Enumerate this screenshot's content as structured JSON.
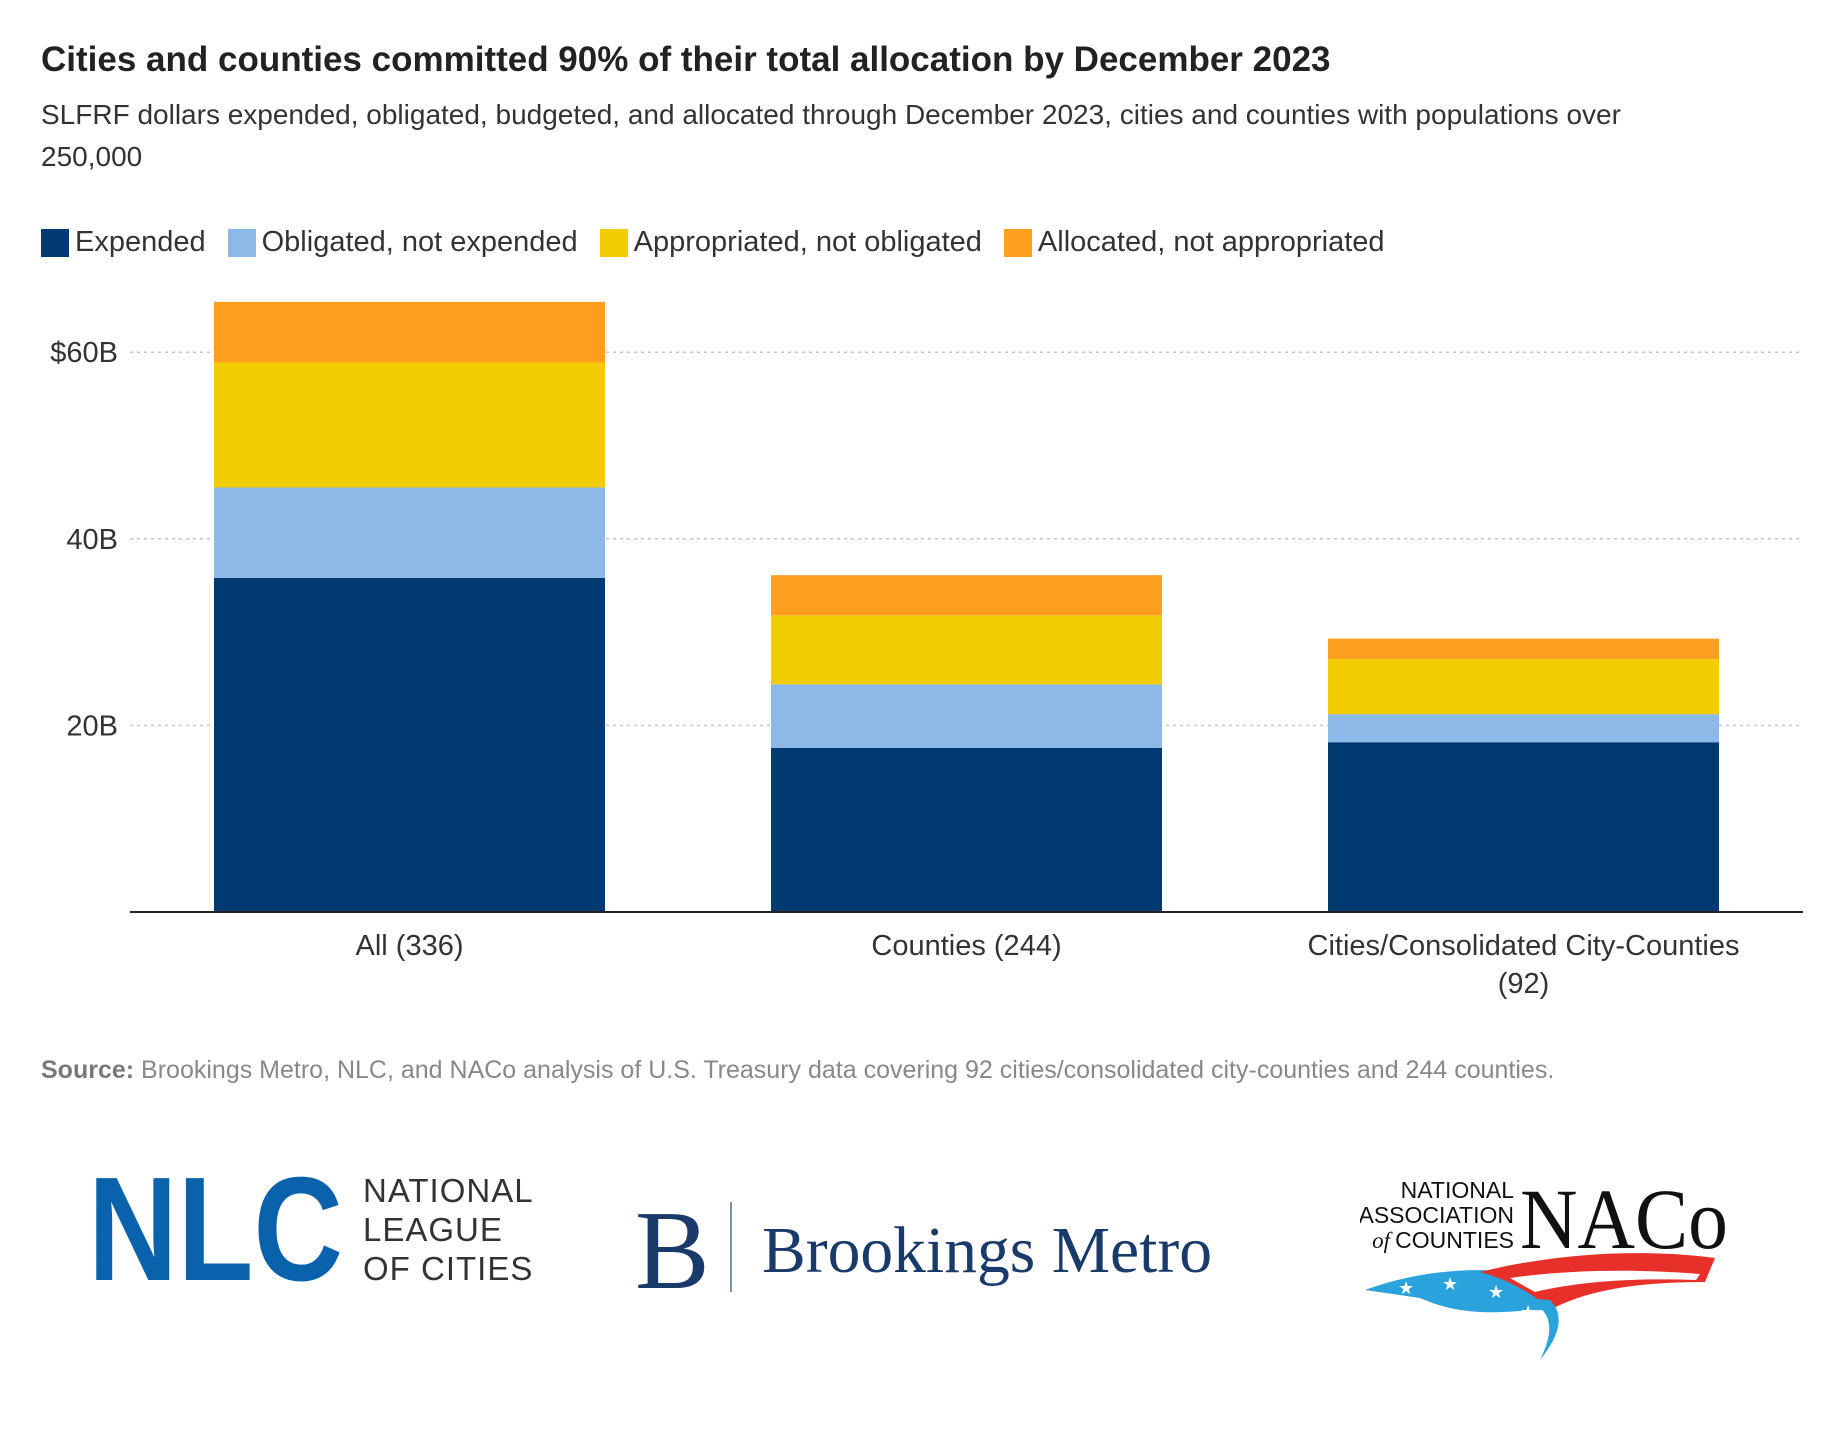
{
  "title": "Cities and counties committed 90% of their total allocation by December 2023",
  "subtitle": "SLFRF dollars expended, obligated, budgeted, and allocated through December 2023, cities and counties with populations over 250,000",
  "source_label": "Source:",
  "source_text": "Brookings Metro, NLC, and NACo analysis of U.S. Treasury data covering 92 cities/consolidated city-counties and 244 counties.",
  "logos": {
    "nlc": {
      "mark": "NLC",
      "line1": "NATIONAL",
      "line2": "LEAGUE",
      "line3": "OF CITIES"
    },
    "brookings": {
      "mark": "B",
      "name": "Brookings Metro"
    },
    "naco": {
      "line1": "NATIONAL",
      "line2": "ASSOCIATION",
      "line3_of": "of",
      "line3": "COUNTIES",
      "mark": "NACo"
    }
  },
  "colors": {
    "expended": "#003a70",
    "obligated": "#8db9e8",
    "appropriated": "#f0cc00",
    "allocated": "#fc9f1e",
    "nlc_blue": "#0a62ad",
    "brookings_navy": "#1a3a6a",
    "naco_red": "#e8302a",
    "naco_blue": "#2aa2db"
  },
  "chart_data": {
    "type": "bar",
    "stacked": true,
    "categories": [
      "All (336)",
      "Counties (244)",
      "Cities/Consolidated City-Counties (92)"
    ],
    "series": [
      {
        "name": "Expended",
        "color": "#003a70",
        "values": [
          35.8,
          17.6,
          18.2
        ]
      },
      {
        "name": "Obligated, not expended",
        "color": "#8db9e8",
        "values": [
          9.7,
          6.8,
          3.0
        ]
      },
      {
        "name": "Appropriated, not obligated",
        "color": "#f0cc00",
        "values": [
          13.4,
          7.4,
          5.9
        ]
      },
      {
        "name": "Allocated, not appropriated",
        "color": "#fc9f1e",
        "values": [
          6.5,
          4.3,
          2.2
        ]
      }
    ],
    "yticks": [
      {
        "value": 20,
        "label": "20B"
      },
      {
        "value": 40,
        "label": "40B"
      },
      {
        "value": 60,
        "label": "$60B"
      }
    ],
    "ylim": [
      0,
      66
    ],
    "grid": true,
    "legend_position": "top-left"
  }
}
